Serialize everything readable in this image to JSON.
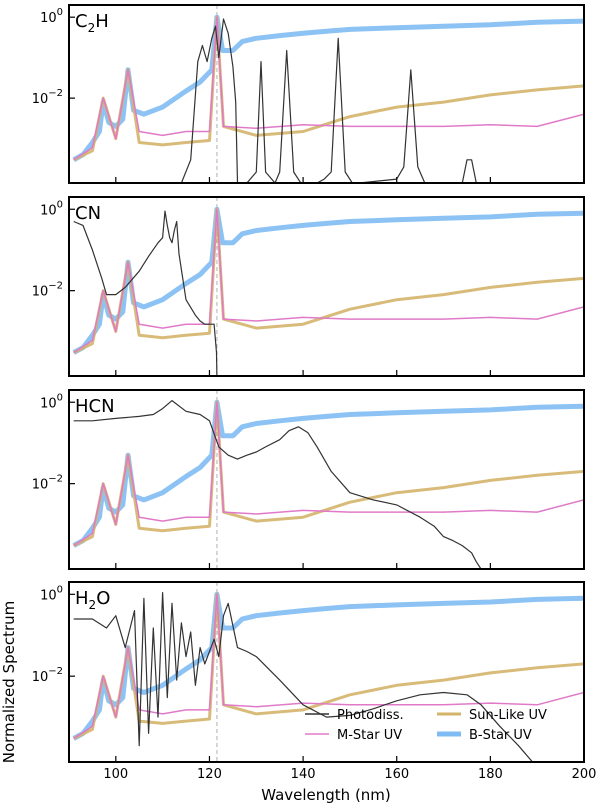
{
  "chart_data": {
    "type": "line",
    "xlabel": "Wavelength (nm)",
    "ylabel": "Normalized Spectrum",
    "xlim": [
      90,
      200
    ],
    "x_ticks": [
      "100",
      "120",
      "140",
      "160",
      "180",
      "200"
    ],
    "y_scale": "log",
    "ylim": [
      8e-05,
      2.0
    ],
    "y_tick_labels": [
      {
        "value": 1.0,
        "base": "10",
        "exp": "0"
      },
      {
        "value": 0.01,
        "base": "10",
        "exp": "−2"
      }
    ],
    "reference_line": {
      "x": 121.6,
      "style": "dashed",
      "color": "#b0b0b0"
    },
    "colors": {
      "photodiss": "#333333",
      "m_star": "#e07ac8",
      "sun_like": "#d4b46a",
      "b_star": "#7fbcf3"
    },
    "legend": {
      "placement": "lower-right",
      "entries": [
        {
          "key": "photodiss",
          "label": "Photodiss."
        },
        {
          "key": "sun_like",
          "label": "Sun-Like UV"
        },
        {
          "key": "m_star",
          "label": "M-Star UV"
        },
        {
          "key": "b_star",
          "label": "B-Star UV"
        }
      ]
    },
    "stellar_series": {
      "b_star": {
        "name": "B-Star UV",
        "x": [
          91,
          93,
          95,
          96.5,
          97.3,
          98.5,
          100,
          101.5,
          102.6,
          103.8,
          106,
          110,
          115,
          118,
          120.5,
          121.6,
          122.8,
          125,
          127,
          130,
          135,
          140,
          145,
          150,
          160,
          170,
          180,
          190,
          200
        ],
        "y": [
          0.0003,
          0.0004,
          0.0008,
          0.0015,
          0.008,
          0.0025,
          0.002,
          0.003,
          0.05,
          0.005,
          0.004,
          0.006,
          0.015,
          0.025,
          0.05,
          1.0,
          0.15,
          0.15,
          0.25,
          0.3,
          0.35,
          0.4,
          0.45,
          0.5,
          0.55,
          0.6,
          0.65,
          0.75,
          0.8
        ]
      },
      "sun_like": {
        "name": "Sun-Like UV",
        "x": [
          91,
          95,
          97.3,
          100,
          102.6,
          105,
          110,
          115,
          120,
          121.6,
          123,
          130,
          140,
          150,
          160,
          170,
          180,
          190,
          200
        ],
        "y": [
          0.0003,
          0.0005,
          0.01,
          0.001,
          0.05,
          0.0008,
          0.0007,
          0.0008,
          0.0009,
          1.0,
          0.002,
          0.0012,
          0.0015,
          0.0035,
          0.006,
          0.008,
          0.012,
          0.016,
          0.02
        ]
      },
      "m_star": {
        "name": "M-Star UV",
        "x": [
          91,
          95,
          97.3,
          100,
          102.6,
          105,
          110,
          115,
          120,
          121.6,
          123,
          130,
          140,
          150,
          160,
          170,
          180,
          190,
          200
        ],
        "y": [
          0.0003,
          0.0006,
          0.01,
          0.001,
          0.05,
          0.0015,
          0.0012,
          0.0015,
          0.0015,
          1.0,
          0.002,
          0.0018,
          0.0022,
          0.002,
          0.002,
          0.002,
          0.0022,
          0.002,
          0.004
        ]
      }
    },
    "panels": [
      {
        "molecule_base": "C",
        "molecule_sub": "2",
        "molecule_rest": "H",
        "photodiss": {
          "name": "Photodiss.",
          "x": [
            91,
            95,
            100,
            105,
            110,
            114,
            116,
            117.5,
            118.5,
            119.5,
            120.5,
            121.3,
            122,
            123,
            124,
            125,
            125.6,
            126,
            128,
            130,
            131,
            132,
            134,
            135,
            136.5,
            138,
            139.5,
            141,
            143,
            144.5,
            146,
            147.5,
            149,
            150.5,
            152,
            160,
            161.5,
            163,
            164.5,
            166,
            174,
            175,
            176,
            177,
            200
          ],
          "y": [
            8e-05,
            8e-05,
            8e-05,
            8e-05,
            8e-05,
            8e-05,
            0.0003,
            0.08,
            0.2,
            0.08,
            0.3,
            0.6,
            0.1,
            0.9,
            0.4,
            0.06,
            0.008,
            8e-05,
            8e-05,
            0.00015,
            0.08,
            0.00015,
            8e-05,
            0.00015,
            0.15,
            0.00015,
            8e-05,
            8e-05,
            8e-05,
            0.0001,
            0.00015,
            0.3,
            0.00015,
            8e-05,
            8e-05,
            0.0001,
            0.0002,
            0.05,
            0.0002,
            8e-05,
            8e-05,
            0.0003,
            0.0003,
            8e-05,
            8e-05
          ]
        }
      },
      {
        "molecule_base": "CN",
        "molecule_sub": "",
        "molecule_rest": "",
        "photodiss": {
          "name": "Photodiss.",
          "x": [
            91,
            93,
            95,
            97,
            98,
            100,
            102,
            105,
            107,
            109,
            110,
            110.5,
            111,
            111.5,
            112,
            112.5,
            113,
            113.5,
            115,
            117,
            118,
            119,
            120,
            121,
            121.5,
            121.6
          ],
          "y": [
            0.5,
            0.4,
            0.1,
            0.02,
            0.008,
            0.008,
            0.012,
            0.03,
            0.07,
            0.15,
            0.2,
            0.9,
            0.4,
            0.2,
            0.15,
            0.3,
            0.5,
            0.08,
            0.006,
            0.0025,
            0.0018,
            0.0015,
            0.0015,
            0.0015,
            0.0003,
            8e-05
          ]
        }
      },
      {
        "molecule_base": "HCN",
        "molecule_sub": "",
        "molecule_rest": "",
        "photodiss": {
          "name": "Photodiss.",
          "x": [
            91,
            95,
            100,
            105,
            108,
            110,
            112,
            115,
            118,
            120,
            122,
            124,
            126,
            128,
            130,
            132,
            135,
            137,
            139,
            141,
            143,
            146,
            150,
            155,
            160,
            165,
            168,
            170,
            172,
            174,
            176,
            177,
            178
          ],
          "y": [
            0.35,
            0.35,
            0.4,
            0.45,
            0.5,
            0.7,
            1.1,
            0.6,
            0.5,
            0.35,
            0.08,
            0.05,
            0.04,
            0.05,
            0.06,
            0.08,
            0.12,
            0.2,
            0.25,
            0.18,
            0.08,
            0.02,
            0.006,
            0.004,
            0.003,
            0.0015,
            0.0009,
            0.0005,
            0.0004,
            0.0003,
            0.0002,
            0.00012,
            8e-05
          ]
        }
      },
      {
        "molecule_base": "H",
        "molecule_sub": "2",
        "molecule_rest": "O",
        "photodiss": {
          "name": "Photodiss.",
          "x": [
            91,
            95,
            98,
            100,
            102,
            104,
            105,
            106,
            107,
            108,
            109,
            110,
            111,
            112,
            113,
            114,
            115,
            116,
            117,
            118,
            119,
            120,
            121,
            122,
            123,
            124,
            126,
            128,
            130,
            135,
            140,
            145,
            150,
            155,
            160,
            165,
            170,
            175,
            178,
            182,
            186,
            189
          ],
          "y": [
            0.25,
            0.25,
            0.15,
            0.3,
            0.05,
            0.4,
            0.0002,
            0.8,
            0.0004,
            0.15,
            0.001,
            1.1,
            0.003,
            0.6,
            0.008,
            0.2,
            0.03,
            0.12,
            0.006,
            0.05,
            0.02,
            0.04,
            0.08,
            0.03,
            0.3,
            0.6,
            0.05,
            0.04,
            0.03,
            0.008,
            0.002,
            0.001,
            0.0011,
            0.0016,
            0.0025,
            0.0035,
            0.004,
            0.0035,
            0.002,
            0.0006,
            0.0002,
            8e-05
          ]
        }
      }
    ]
  }
}
